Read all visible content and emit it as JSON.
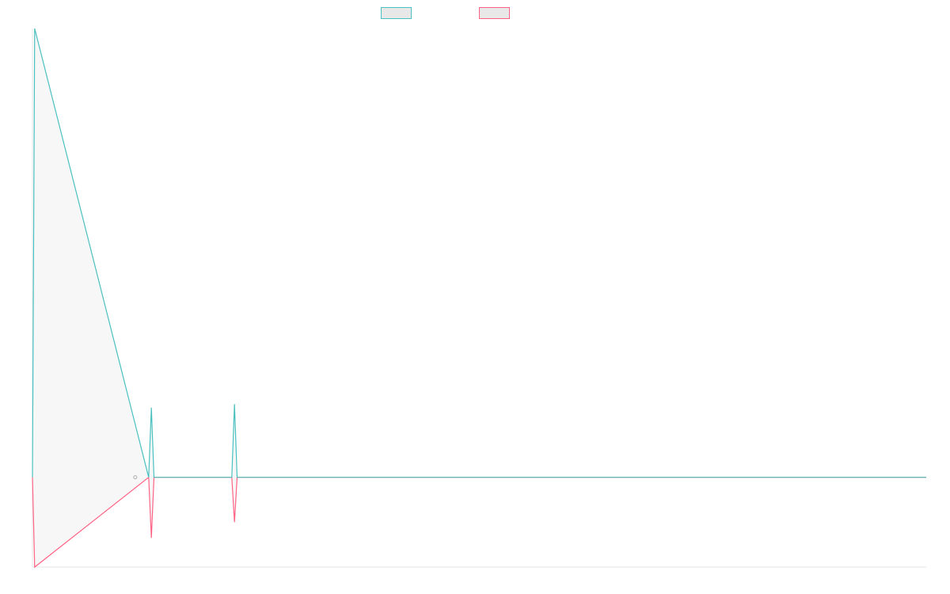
{
  "colors": {
    "series_a": "#4bc0c0",
    "series_b": "#ff6384",
    "series_fill": "#e8e8e8",
    "axis": "#e6e6e6",
    "marker": "#aaaaaa"
  },
  "legend": {
    "items": [
      {
        "label": "",
        "color_key": "series_a"
      },
      {
        "label": "",
        "color_key": "series_b"
      }
    ],
    "placement": "top-center"
  },
  "chart_data": {
    "type": "line",
    "title": "",
    "xlabel": "",
    "ylabel": "",
    "grid": false,
    "ylim": [
      -2,
      10
    ],
    "xlim": [
      0,
      100
    ],
    "x": [
      0,
      0.25,
      13,
      13.3,
      13.6,
      22.3,
      22.6,
      22.9,
      100
    ],
    "series": [
      {
        "values": [
          0,
          10,
          0,
          1.55,
          0,
          0,
          1.63,
          0,
          0
        ]
      },
      {
        "values": [
          0,
          -2,
          0,
          -1.35,
          0,
          0,
          -1.0,
          0,
          0
        ]
      }
    ],
    "marker_point": {
      "x": 11.5,
      "y": 0
    }
  }
}
